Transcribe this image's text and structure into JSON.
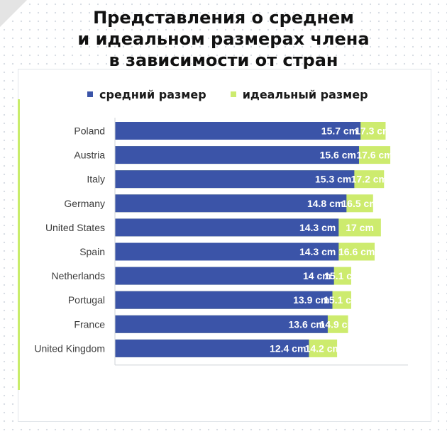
{
  "title_lines": [
    "Представления о среднем",
    "и идеальном размерах члена",
    "в зависимости от стран"
  ],
  "legend": {
    "average": "средний размер",
    "ideal": "идеальный размер"
  },
  "colors": {
    "average": "#3b54a8",
    "ideal": "#cdeb6e",
    "corner": "#e4e4e4"
  },
  "chart_data": {
    "type": "bar",
    "orientation": "horizontal",
    "title": "Представления о среднем и идеальном размерах члена в зависимости от стран",
    "categories": [
      "Poland",
      "Austria",
      "Italy",
      "Germany",
      "United States",
      "Spain",
      "Netherlands",
      "Portugal",
      "France",
      "United Kingdom"
    ],
    "series": [
      {
        "name": "средний размер",
        "values": [
          15.7,
          15.6,
          15.3,
          14.8,
          14.3,
          14.3,
          14,
          13.9,
          13.6,
          12.4
        ]
      },
      {
        "name": "идеальный размер",
        "values": [
          17.3,
          17.6,
          17.2,
          16.5,
          17,
          16.6,
          15.1,
          15.1,
          14.9,
          14.2
        ]
      }
    ],
    "average_labels": [
      "15.7 cm",
      "15.6 cm",
      "15.3 cm",
      "14.8 cm",
      "14.3 cm",
      "14.3 cm",
      "14 cm",
      "13.9 cm",
      "13.6 cm",
      "12.4 cm"
    ],
    "ideal_labels": [
      "17.3 cm",
      "17.6 cm",
      "17.2 cm",
      "16.5 cm",
      "17 cm",
      "16.6 cm",
      "15.1 cm",
      "15.1 cm",
      "14.9 cm",
      "14.2 cm"
    ],
    "stacking": "overlay",
    "legend_position": "top",
    "grid": false
  }
}
